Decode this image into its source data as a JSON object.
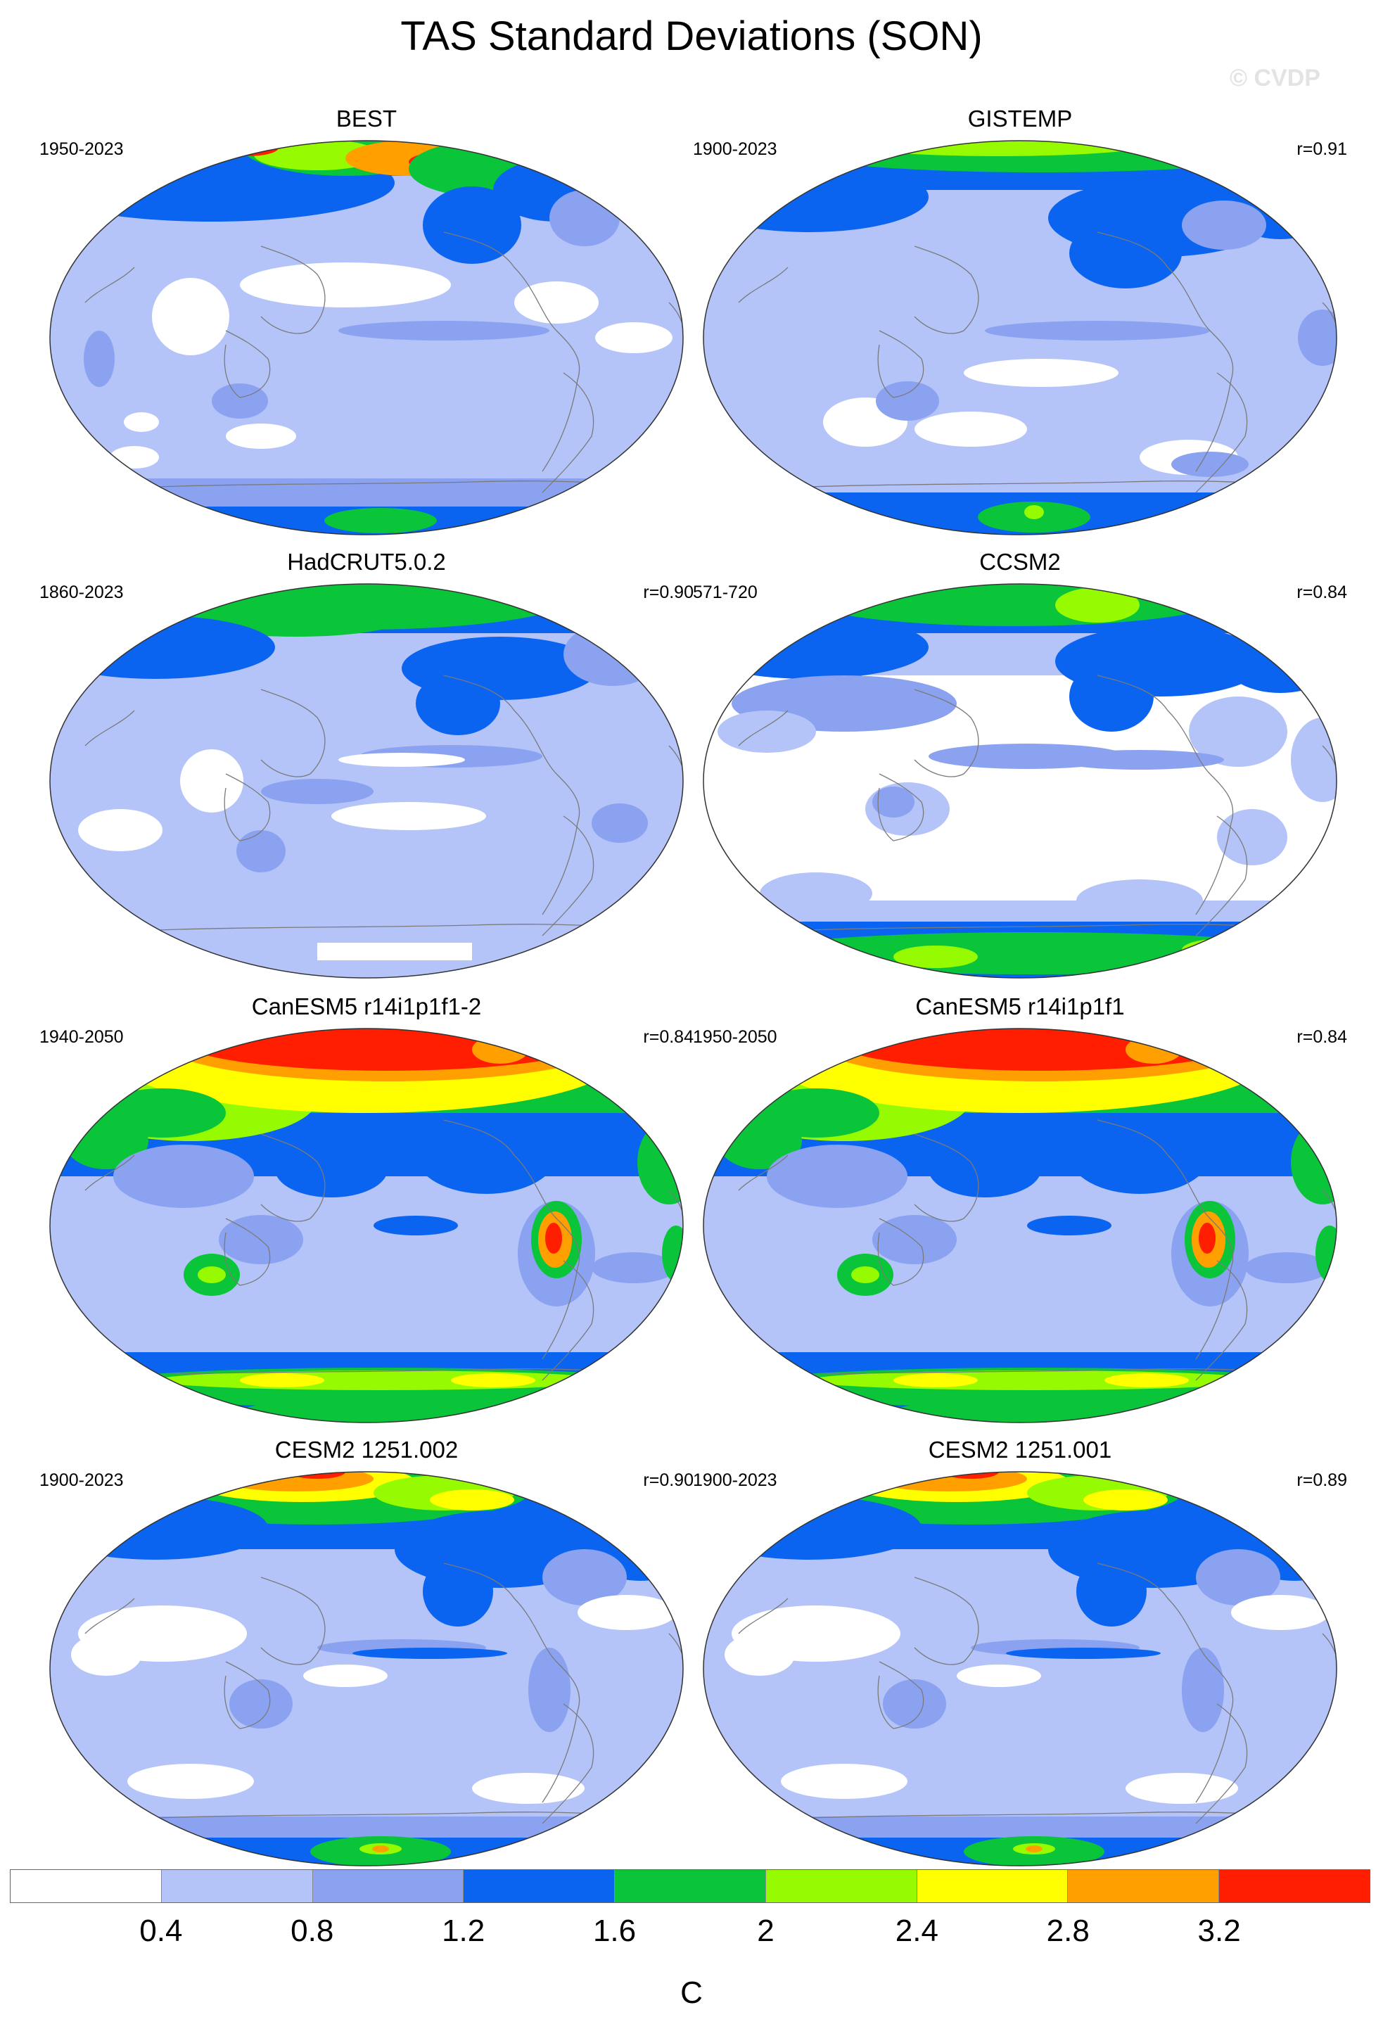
{
  "title": "TAS Standard Deviations (SON)",
  "watermark": "© CVDP",
  "panels": [
    {
      "title": "BEST",
      "period": "1950-2023",
      "corr": "",
      "pattern": "obs_best"
    },
    {
      "title": "GISTEMP",
      "period": "1900-2023",
      "corr": "r=0.91",
      "pattern": "obs_gistemp"
    },
    {
      "title": "HadCRUT5.0.2",
      "period": "1860-2023",
      "corr": "r=0.90",
      "pattern": "obs_hadcrut"
    },
    {
      "title": "CCSM2",
      "period": "571-720",
      "corr": "r=0.84",
      "pattern": "ccsm2"
    },
    {
      "title": "CanESM5 r14i1p1f1-2",
      "period": "1940-2050",
      "corr": "r=0.84",
      "pattern": "canesm"
    },
    {
      "title": "CanESM5 r14i1p1f1",
      "period": "1950-2050",
      "corr": "r=0.84",
      "pattern": "canesm"
    },
    {
      "title": "CESM2 1251.002",
      "period": "1900-2023",
      "corr": "r=0.90",
      "pattern": "cesm2"
    },
    {
      "title": "CESM2 1251.001",
      "period": "1900-2023",
      "corr": "r=0.89",
      "pattern": "cesm2"
    }
  ],
  "colorbar": {
    "colors": [
      "#ffffff",
      "#b4c4f8",
      "#8aa2f0",
      "#0a64f0",
      "#0ac43a",
      "#96fa00",
      "#ffff00",
      "#ffa000",
      "#ff1e00"
    ],
    "ticks": [
      "0.4",
      "0.8",
      "1.2",
      "1.6",
      "2",
      "2.4",
      "2.8",
      "3.2"
    ],
    "unit": "C"
  }
}
